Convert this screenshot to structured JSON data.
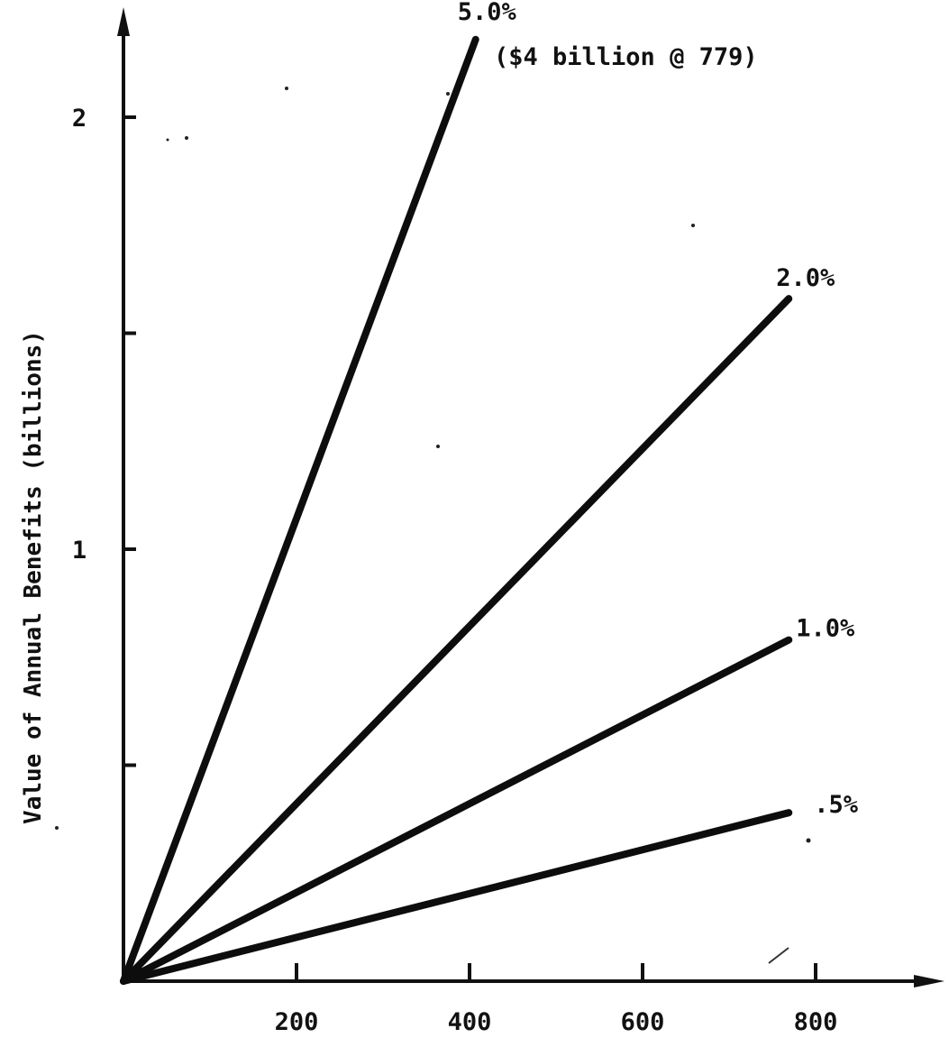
{
  "chart_data": {
    "type": "line",
    "title": "",
    "xlabel": "",
    "ylabel": "Value of Annual Benefits (billions)",
    "xlim": [
      0,
      930
    ],
    "ylim": [
      0,
      2.25
    ],
    "x_ticks": [
      200,
      400,
      600,
      800
    ],
    "x_tick_labels": [
      "200",
      "400",
      "600",
      "800"
    ],
    "y_ticks": [
      0.5,
      1,
      1.5,
      2
    ],
    "y_tick_labels": [
      "",
      "1",
      "",
      "2"
    ],
    "grid": false,
    "legend": "none",
    "series": [
      {
        "label": "5.0%",
        "x": [
          0,
          407
        ],
        "y": [
          0,
          2.18
        ]
      },
      {
        "label": "2.0%",
        "x": [
          0,
          769
        ],
        "y": [
          0,
          1.58
        ]
      },
      {
        "label": "1.0%",
        "x": [
          0,
          769
        ],
        "y": [
          0,
          0.79
        ]
      },
      {
        "label": ".5%",
        "x": [
          0,
          769
        ],
        "y": [
          0,
          0.39
        ]
      }
    ],
    "annotation": "($4 billion @ 779)",
    "colors": {
      "line": "#0d0d0d",
      "text": "#111111",
      "background": "#ffffff"
    }
  }
}
